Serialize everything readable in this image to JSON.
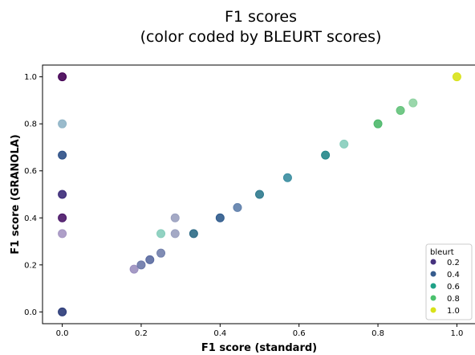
{
  "chart_data": {
    "type": "scatter",
    "title_lines": [
      "F1 scores",
      "(color coded by BLEURT scores)"
    ],
    "xlabel": "F1 score (standard)",
    "ylabel": "F1 score (GRANOLA)",
    "xlim": [
      -0.05,
      1.05
    ],
    "ylim": [
      -0.05,
      1.05
    ],
    "xticks": [
      "0.0",
      "0.2",
      "0.4",
      "0.6",
      "0.8",
      "1.0"
    ],
    "yticks": [
      "0.0",
      "0.2",
      "0.4",
      "0.6",
      "0.8",
      "1.0"
    ],
    "grid": false,
    "legend": {
      "title": "bleurt",
      "placement": "bottom-right",
      "entries": [
        {
          "label": "0.2",
          "color": "#46327e"
        },
        {
          "label": "0.4",
          "color": "#365c8d"
        },
        {
          "label": "0.6",
          "color": "#1fa187"
        },
        {
          "label": "0.8",
          "color": "#4ac16d"
        },
        {
          "label": "1.0",
          "color": "#d8e219"
        }
      ]
    },
    "points": [
      {
        "x": 0.0,
        "y": 1.0,
        "color": "#440154"
      },
      {
        "x": 0.0,
        "y": 0.8,
        "color": "#8fb4c6"
      },
      {
        "x": 0.0,
        "y": 0.667,
        "color": "#2c4f86"
      },
      {
        "x": 0.0,
        "y": 0.5,
        "color": "#3b2a78"
      },
      {
        "x": 0.0,
        "y": 0.4,
        "color": "#4a1668"
      },
      {
        "x": 0.0,
        "y": 0.333,
        "color": "#a595c2"
      },
      {
        "x": 0.0,
        "y": 0.0,
        "color": "#2a3a78"
      },
      {
        "x": 0.182,
        "y": 0.182,
        "color": "#9b8fbf"
      },
      {
        "x": 0.2,
        "y": 0.2,
        "color": "#6c78a8"
      },
      {
        "x": 0.222,
        "y": 0.222,
        "color": "#5a6aa0"
      },
      {
        "x": 0.25,
        "y": 0.25,
        "color": "#7280ac"
      },
      {
        "x": 0.25,
        "y": 0.333,
        "color": "#86cdbb"
      },
      {
        "x": 0.286,
        "y": 0.333,
        "color": "#9aa0bf"
      },
      {
        "x": 0.286,
        "y": 0.4,
        "color": "#9aa0bf"
      },
      {
        "x": 0.333,
        "y": 0.333,
        "color": "#2e6b86"
      },
      {
        "x": 0.4,
        "y": 0.4,
        "color": "#2f5b8c"
      },
      {
        "x": 0.444,
        "y": 0.444,
        "color": "#5f7fab"
      },
      {
        "x": 0.5,
        "y": 0.5,
        "color": "#2f7a8e"
      },
      {
        "x": 0.571,
        "y": 0.571,
        "color": "#3a8da0"
      },
      {
        "x": 0.667,
        "y": 0.667,
        "color": "#23878a"
      },
      {
        "x": 0.714,
        "y": 0.714,
        "color": "#86cdbb"
      },
      {
        "x": 0.8,
        "y": 0.8,
        "color": "#4cb86a"
      },
      {
        "x": 0.857,
        "y": 0.857,
        "color": "#63c27a"
      },
      {
        "x": 0.889,
        "y": 0.889,
        "color": "#8fd3a2"
      },
      {
        "x": 1.0,
        "y": 1.0,
        "color": "#d8e219"
      }
    ]
  }
}
